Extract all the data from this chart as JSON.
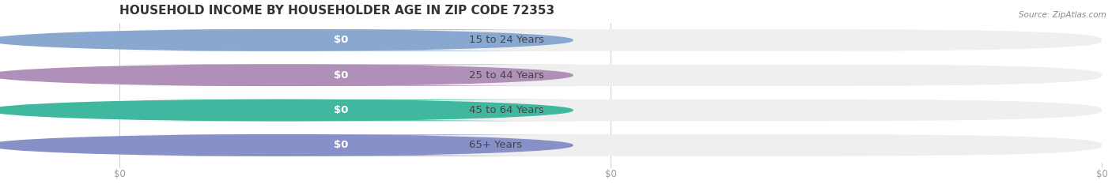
{
  "title": "HOUSEHOLD INCOME BY HOUSEHOLDER AGE IN ZIP CODE 72353",
  "source": "Source: ZipAtlas.com",
  "categories": [
    "15 to 24 Years",
    "25 to 44 Years",
    "45 to 64 Years",
    "65+ Years"
  ],
  "values": [
    0,
    0,
    0,
    0
  ],
  "bar_colors": [
    "#a8c0e0",
    "#c8a8c8",
    "#5ec8b0",
    "#a8b0d8"
  ],
  "dot_colors": [
    "#88a8d0",
    "#b090b8",
    "#40b8a0",
    "#8890c8"
  ],
  "label_bg_color": "#f5f5f5",
  "bar_bg_color": "#efefef",
  "background_color": "#ffffff",
  "title_color": "#333333",
  "title_fontsize": 11,
  "label_fontsize": 9.5,
  "value_label": "$0",
  "x_tick_labels": [
    "$0",
    "$0",
    "$0"
  ],
  "x_tick_positions": [
    0.0,
    0.5,
    1.0
  ],
  "n_xticks": 3
}
